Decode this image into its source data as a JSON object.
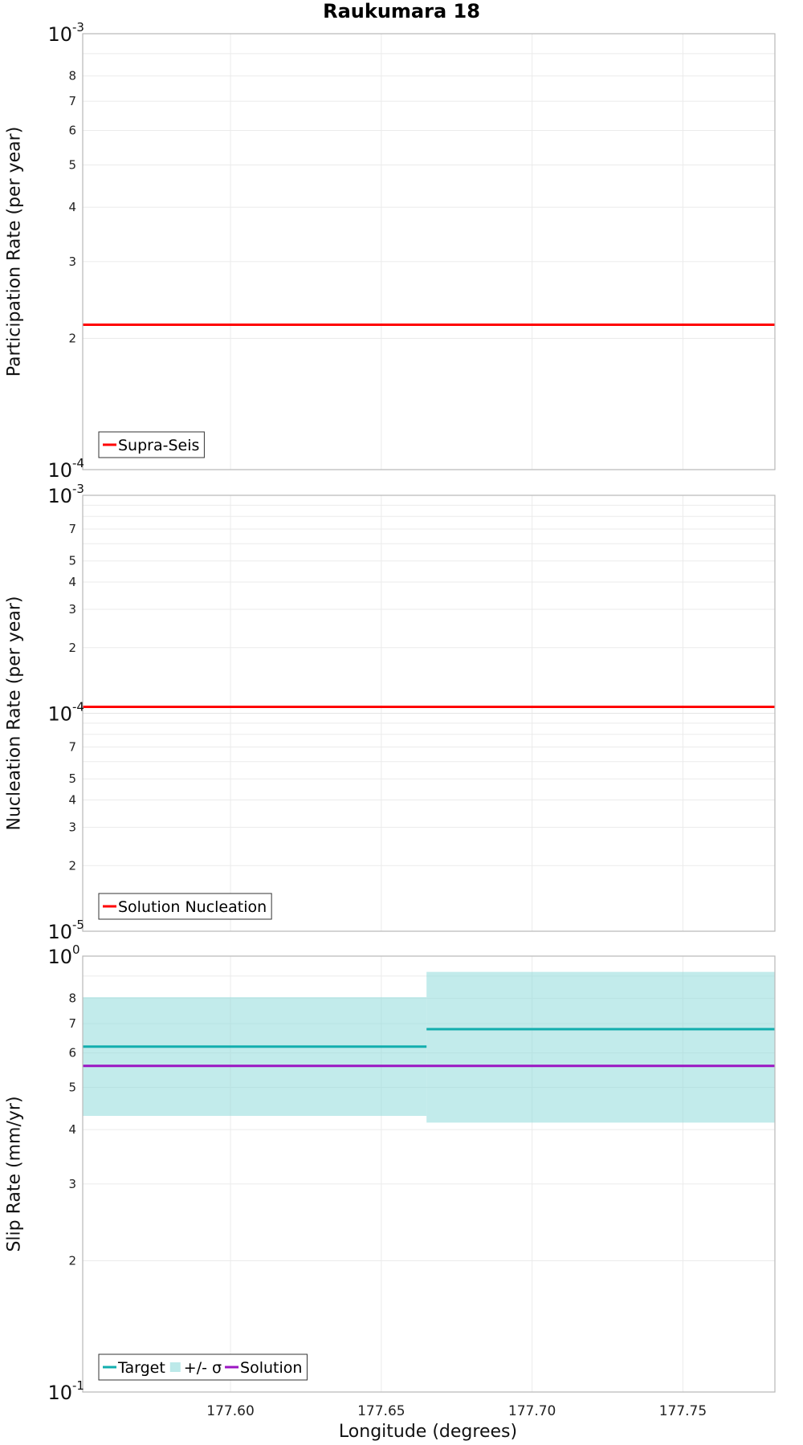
{
  "title": "Raukumara 18",
  "xlabel": "Longitude (degrees)",
  "xlim": [
    177.551,
    177.7805
  ],
  "xticks": [
    177.6,
    177.65,
    177.7,
    177.75
  ],
  "xtick_labels": [
    "177.60",
    "177.65",
    "177.70",
    "177.75"
  ],
  "chart_data": [
    {
      "type": "line",
      "yscale": "log",
      "ylabel": "Participation Rate (per year)",
      "ylim": [
        0.0001,
        0.001
      ],
      "decade_labels": [
        {
          "value": 0.001,
          "base": "10",
          "exp": "-3"
        },
        {
          "value": 0.0001,
          "base": "10",
          "exp": "-4"
        }
      ],
      "minor_ticks": [
        {
          "value": 0.0002,
          "label": "2"
        },
        {
          "value": 0.0003,
          "label": "3"
        },
        {
          "value": 0.0004,
          "label": "4"
        },
        {
          "value": 0.0005,
          "label": "5"
        },
        {
          "value": 0.0006,
          "label": "6"
        },
        {
          "value": 0.0007,
          "label": "7"
        },
        {
          "value": 0.0008,
          "label": "8"
        },
        {
          "value": 0.0009,
          "label": ""
        }
      ],
      "series": [
        {
          "name": "Supra-Seis",
          "color": "#ff0000",
          "kind": "line",
          "segments": [
            {
              "x": [
                177.551,
                177.7805
              ],
              "y": [
                0.000215,
                0.000215
              ]
            }
          ]
        }
      ],
      "legend": [
        {
          "label": "Supra-Seis",
          "color": "#ff0000",
          "kind": "line"
        }
      ],
      "legend_position": "bottom-left"
    },
    {
      "type": "line",
      "yscale": "log",
      "ylabel": "Nucleation Rate (per year)",
      "ylim": [
        1e-05,
        0.001
      ],
      "decade_labels": [
        {
          "value": 0.001,
          "base": "10",
          "exp": "-3"
        },
        {
          "value": 0.0001,
          "base": "10",
          "exp": "-4"
        },
        {
          "value": 1e-05,
          "base": "10",
          "exp": "-5"
        }
      ],
      "minor_ticks": [
        {
          "value": 0.0002,
          "label": "2"
        },
        {
          "value": 0.0003,
          "label": "3"
        },
        {
          "value": 0.0004,
          "label": "4"
        },
        {
          "value": 0.0005,
          "label": "5"
        },
        {
          "value": 0.0006,
          "label": ""
        },
        {
          "value": 0.0007,
          "label": "7"
        },
        {
          "value": 0.0008,
          "label": ""
        },
        {
          "value": 0.0009,
          "label": ""
        },
        {
          "value": 2e-05,
          "label": "2"
        },
        {
          "value": 3e-05,
          "label": "3"
        },
        {
          "value": 4e-05,
          "label": "4"
        },
        {
          "value": 5e-05,
          "label": "5"
        },
        {
          "value": 6e-05,
          "label": ""
        },
        {
          "value": 7e-05,
          "label": "7"
        },
        {
          "value": 8e-05,
          "label": ""
        },
        {
          "value": 9e-05,
          "label": ""
        }
      ],
      "series": [
        {
          "name": "Solution Nucleation",
          "color": "#ff0000",
          "kind": "line",
          "segments": [
            {
              "x": [
                177.551,
                177.7805
              ],
              "y": [
                0.000107,
                0.000107
              ]
            }
          ]
        }
      ],
      "legend": [
        {
          "label": "Solution Nucleation",
          "color": "#ff0000",
          "kind": "line"
        }
      ],
      "legend_position": "bottom-left"
    },
    {
      "type": "line",
      "yscale": "log",
      "ylabel": "Slip Rate (mm/yr)",
      "ylim": [
        0.1,
        1.0
      ],
      "decade_labels": [
        {
          "value": 1.0,
          "base": "10",
          "exp": "0"
        },
        {
          "value": 0.1,
          "base": "10",
          "exp": "-1"
        }
      ],
      "minor_ticks": [
        {
          "value": 0.2,
          "label": "2"
        },
        {
          "value": 0.3,
          "label": "3"
        },
        {
          "value": 0.4,
          "label": "4"
        },
        {
          "value": 0.5,
          "label": "5"
        },
        {
          "value": 0.6,
          "label": "6"
        },
        {
          "value": 0.7,
          "label": "7"
        },
        {
          "value": 0.8,
          "label": "8"
        },
        {
          "value": 0.9,
          "label": ""
        }
      ],
      "bands": [
        {
          "name": "+/- σ",
          "color": "#8fdbdb",
          "x": [
            177.551,
            177.665
          ],
          "y": [
            0.43,
            0.805
          ]
        },
        {
          "name": "+/- σ",
          "color": "#8fdbdb",
          "x": [
            177.665,
            177.7805
          ],
          "y": [
            0.415,
            0.92
          ]
        }
      ],
      "series": [
        {
          "name": "Target",
          "color": "#12aeae",
          "kind": "line",
          "segments": [
            {
              "x": [
                177.551,
                177.665
              ],
              "y": [
                0.62,
                0.62
              ]
            },
            {
              "x": [
                177.665,
                177.7805
              ],
              "y": [
                0.68,
                0.68
              ]
            }
          ]
        },
        {
          "name": "Solution",
          "color": "#9b16c2",
          "kind": "line",
          "segments": [
            {
              "x": [
                177.551,
                177.7805
              ],
              "y": [
                0.56,
                0.56
              ]
            }
          ]
        }
      ],
      "legend": [
        {
          "label": "Target",
          "color": "#12aeae",
          "kind": "line"
        },
        {
          "label": "+/- σ",
          "color": "#8fdbdb",
          "kind": "box"
        },
        {
          "label": "Solution",
          "color": "#9b16c2",
          "kind": "line"
        }
      ],
      "legend_position": "bottom-left"
    }
  ]
}
